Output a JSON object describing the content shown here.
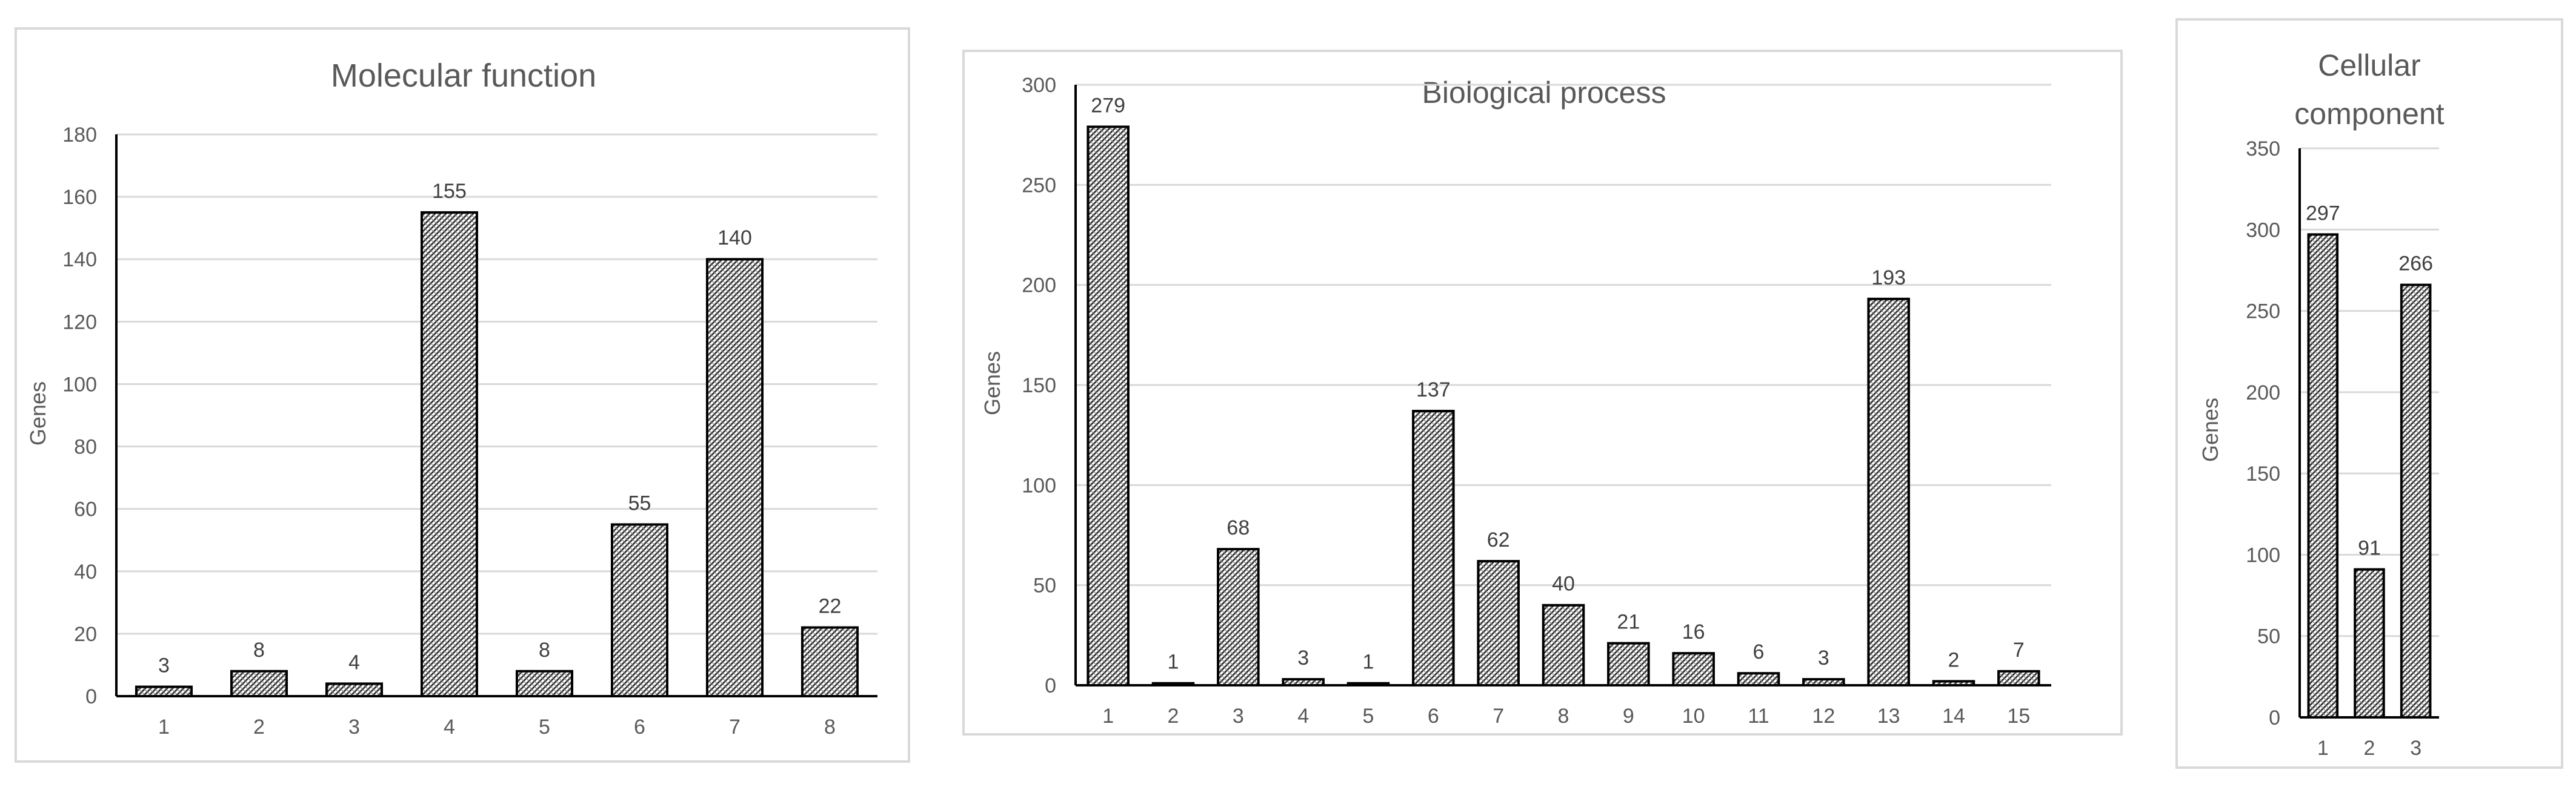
{
  "chart_data": [
    {
      "id": "mf",
      "type": "bar",
      "title": "Molecular function",
      "ylabel": "Genes",
      "xlabel": "",
      "categories": [
        "1",
        "2",
        "3",
        "4",
        "5",
        "6",
        "7",
        "8"
      ],
      "values": [
        3,
        8,
        4,
        155,
        8,
        55,
        140,
        22
      ],
      "ylim": [
        0,
        180
      ],
      "yticks": [
        0,
        20,
        40,
        60,
        80,
        100,
        120,
        140,
        160,
        180
      ],
      "grid": true,
      "pattern": "diagonal-hatch"
    },
    {
      "id": "bp",
      "type": "bar",
      "title": "Biological process",
      "ylabel": "Genes",
      "xlabel": "",
      "categories": [
        "1",
        "2",
        "3",
        "4",
        "5",
        "6",
        "7",
        "8",
        "9",
        "10",
        "11",
        "12",
        "13",
        "14",
        "15"
      ],
      "values": [
        279,
        1,
        68,
        3,
        1,
        137,
        62,
        40,
        21,
        16,
        6,
        3,
        193,
        2,
        7
      ],
      "ylim": [
        0,
        300
      ],
      "yticks": [
        0,
        50,
        100,
        150,
        200,
        250,
        300
      ],
      "grid": true,
      "pattern": "diagonal-hatch"
    },
    {
      "id": "cc",
      "type": "bar",
      "title": "Cellular component",
      "title_lines": [
        "Cellular",
        "component"
      ],
      "ylabel": "Genes",
      "xlabel": "",
      "categories": [
        "1",
        "2",
        "3"
      ],
      "values": [
        297,
        91,
        266
      ],
      "ylim": [
        0,
        350
      ],
      "yticks": [
        0,
        50,
        100,
        150,
        200,
        250,
        300,
        350
      ],
      "grid": true,
      "pattern": "diagonal-hatch"
    }
  ]
}
